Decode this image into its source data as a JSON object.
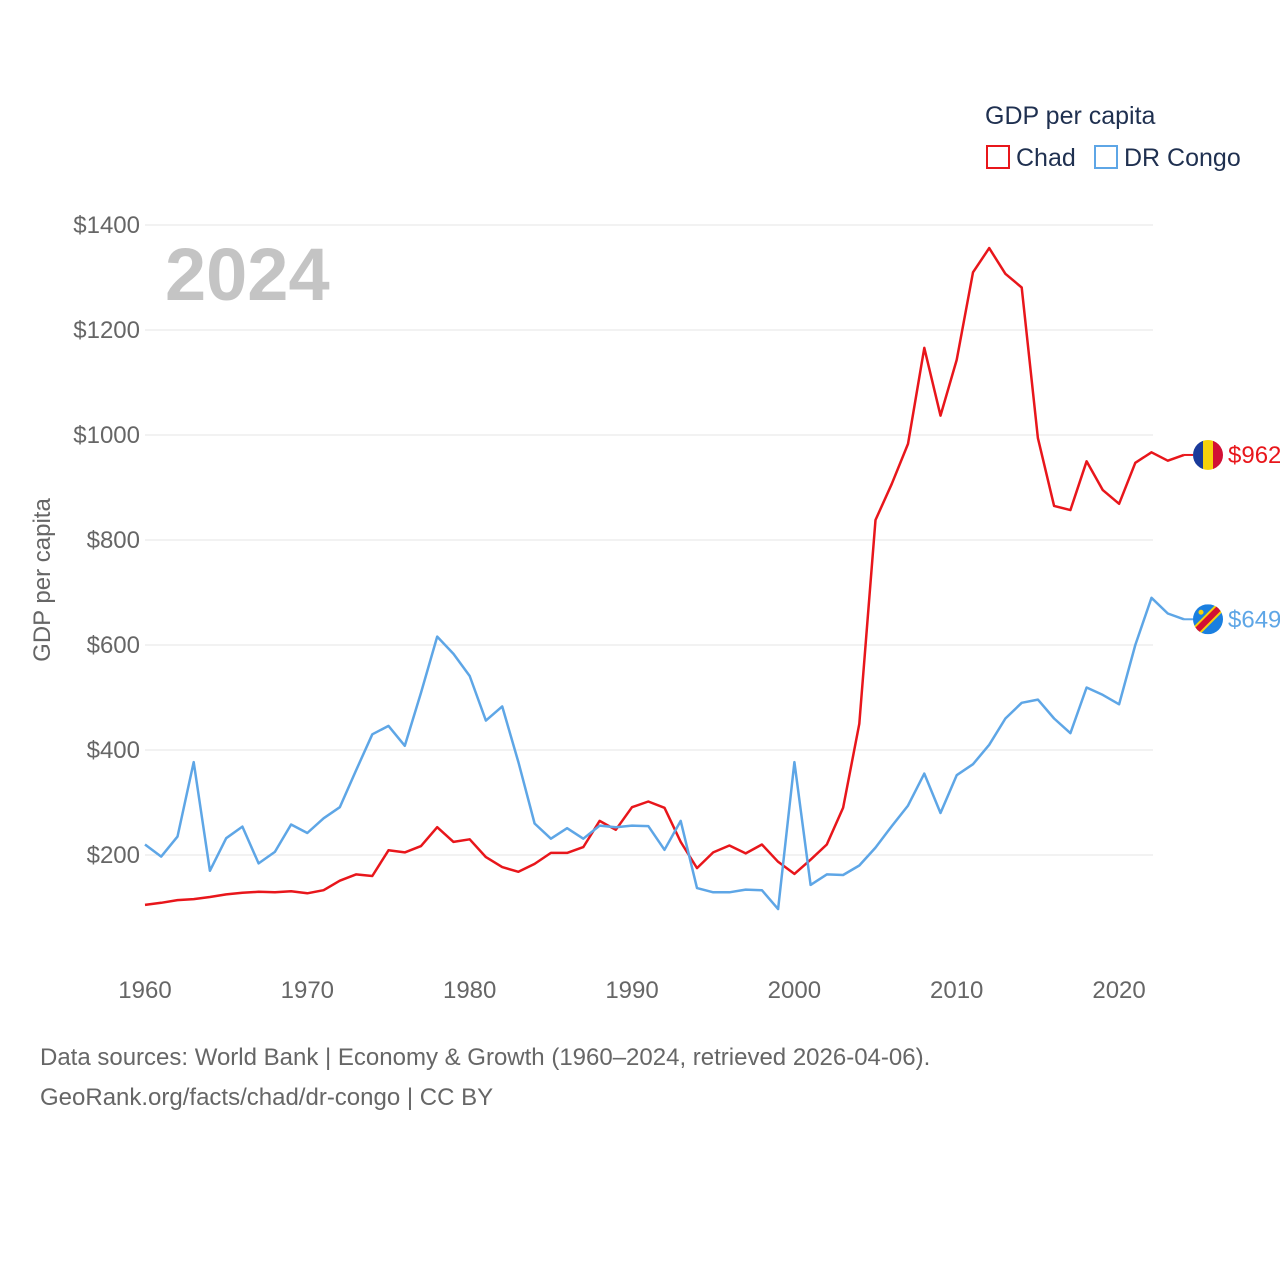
{
  "chart_data": {
    "type": "line",
    "title": "",
    "year_label": "2024",
    "xlabel": "",
    "ylabel": "GDP per capita",
    "xlim": [
      1960,
      2024
    ],
    "ylim": [
      0,
      1400
    ],
    "yticks": [
      200,
      400,
      600,
      800,
      1000,
      1200,
      1400
    ],
    "ytick_labels": [
      "$200",
      "$400",
      "$600",
      "$800",
      "$1000",
      "$1200",
      "$1400"
    ],
    "xticks": [
      1960,
      1970,
      1980,
      1990,
      2000,
      2010,
      2020
    ],
    "xtick_labels": [
      "1960",
      "1970",
      "1980",
      "1990",
      "2000",
      "2010",
      "2020"
    ],
    "grid": true,
    "legend_title": "GDP per capita",
    "legend_position": "top-right",
    "x": [
      1960,
      1961,
      1962,
      1963,
      1964,
      1965,
      1966,
      1967,
      1968,
      1969,
      1970,
      1971,
      1972,
      1973,
      1974,
      1975,
      1976,
      1977,
      1978,
      1979,
      1980,
      1981,
      1982,
      1983,
      1984,
      1985,
      1986,
      1987,
      1988,
      1989,
      1990,
      1991,
      1992,
      1993,
      1994,
      1995,
      1996,
      1997,
      1998,
      1999,
      2000,
      2001,
      2002,
      2003,
      2004,
      2005,
      2006,
      2007,
      2008,
      2009,
      2010,
      2011,
      2012,
      2013,
      2014,
      2015,
      2016,
      2017,
      2018,
      2019,
      2020,
      2021,
      2022,
      2023,
      2024
    ],
    "series": [
      {
        "name": "Chad",
        "color": "#e8161b",
        "end_label": "$962",
        "flag_icon": "chad-flag-icon",
        "flag_colors": [
          "#1a3a9a",
          "#f6d10b",
          "#d21034"
        ],
        "values": [
          105,
          109,
          114,
          116,
          120,
          125,
          128,
          130,
          129,
          131,
          127,
          133,
          151,
          163,
          160,
          209,
          205,
          217,
          253,
          225,
          230,
          196,
          177,
          168,
          183,
          204,
          204,
          215,
          265,
          248,
          291,
          302,
          290,
          225,
          175,
          205,
          218,
          203,
          220,
          187,
          164,
          191,
          220,
          290,
          450,
          838,
          907,
          983,
          1166,
          1037,
          1143,
          1310,
          1356,
          1307,
          1281,
          994,
          865,
          857,
          950,
          895,
          869,
          947,
          967,
          951,
          962
        ]
      },
      {
        "name": "DR Congo",
        "color": "#5ea6e6",
        "end_label": "$649",
        "flag_icon": "dr-congo-flag-icon",
        "flag_colors": [
          "#1a7fe0",
          "#f6d10b",
          "#d21034"
        ],
        "values": [
          220,
          197,
          235,
          377,
          170,
          232,
          254,
          184,
          206,
          258,
          242,
          270,
          291,
          361,
          430,
          446,
          408,
          509,
          616,
          583,
          541,
          456,
          483,
          377,
          260,
          231,
          251,
          231,
          256,
          253,
          256,
          255,
          210,
          265,
          137,
          129,
          129,
          134,
          133,
          97,
          377,
          143,
          163,
          162,
          180,
          214,
          255,
          294,
          355,
          280,
          352,
          373,
          410,
          460,
          490,
          496,
          460,
          432,
          519,
          505,
          487,
          600,
          690,
          660,
          649
        ]
      }
    ]
  },
  "footer": {
    "line1": "Data sources: World Bank | Economy & Growth (1960–2024, retrieved 2026-04-06).",
    "line2": "GeoRank.org/facts/chad/dr-congo | CC BY"
  }
}
